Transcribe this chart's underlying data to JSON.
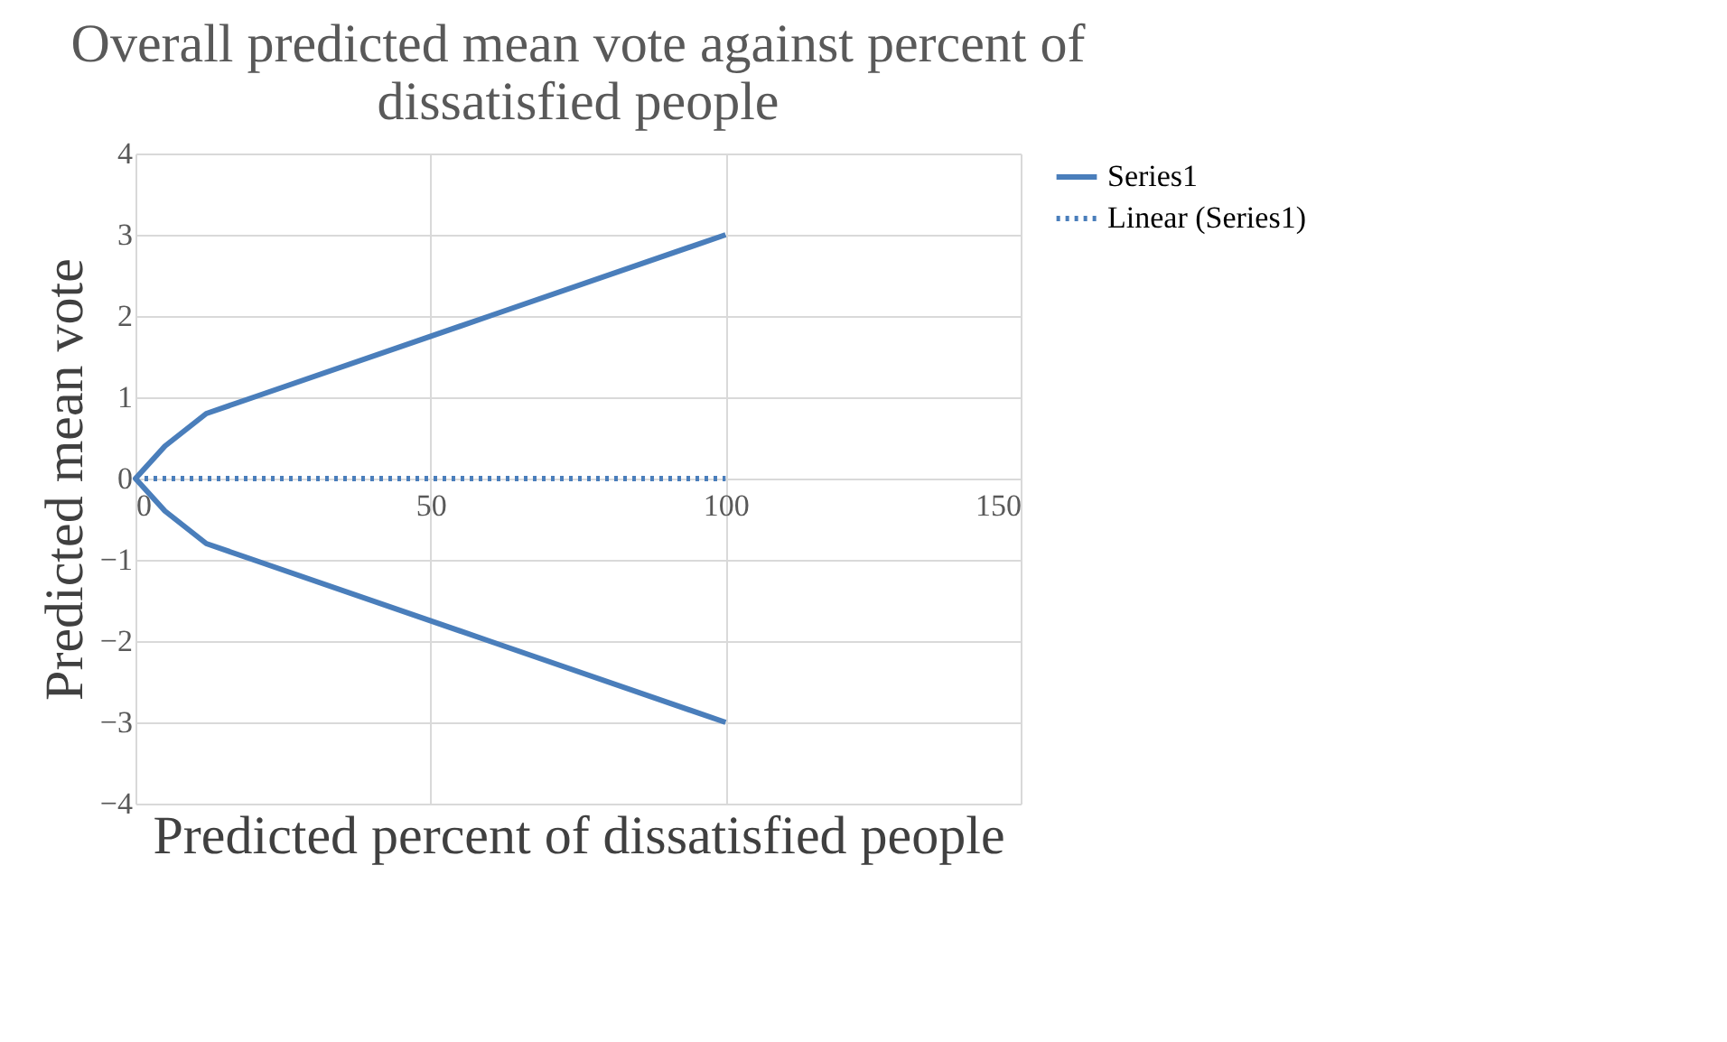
{
  "chart_data": {
    "type": "line",
    "title": [
      "Overall predicted mean vote against percent of",
      "dissatisfied people"
    ],
    "xlabel": "Predicted percent of dissatisfied people",
    "ylabel": "Predicted mean vote",
    "series": [
      {
        "name": "Series1",
        "color": "#4a7ebb",
        "x": [
          100,
          60,
          20,
          12,
          5,
          0,
          5,
          12,
          20,
          60,
          100
        ],
        "values": [
          3,
          2,
          1,
          0.8,
          0.4,
          0,
          -0.4,
          -0.8,
          -1,
          -2,
          -3
        ],
        "line_style": "solid"
      },
      {
        "name": "Linear (Series1)",
        "color": "#4a7ebb",
        "x": [
          0,
          100
        ],
        "values": [
          0,
          0
        ],
        "line_style": "dotted"
      }
    ],
    "xlim": [
      0,
      150
    ],
    "xticks": [
      0,
      50,
      100,
      150
    ],
    "ylim": [
      -4,
      4
    ],
    "yticks": [
      -4,
      -3,
      -2,
      -1,
      0,
      1,
      2,
      3,
      4
    ],
    "grid": true,
    "legend": "right",
    "marker": "none"
  }
}
